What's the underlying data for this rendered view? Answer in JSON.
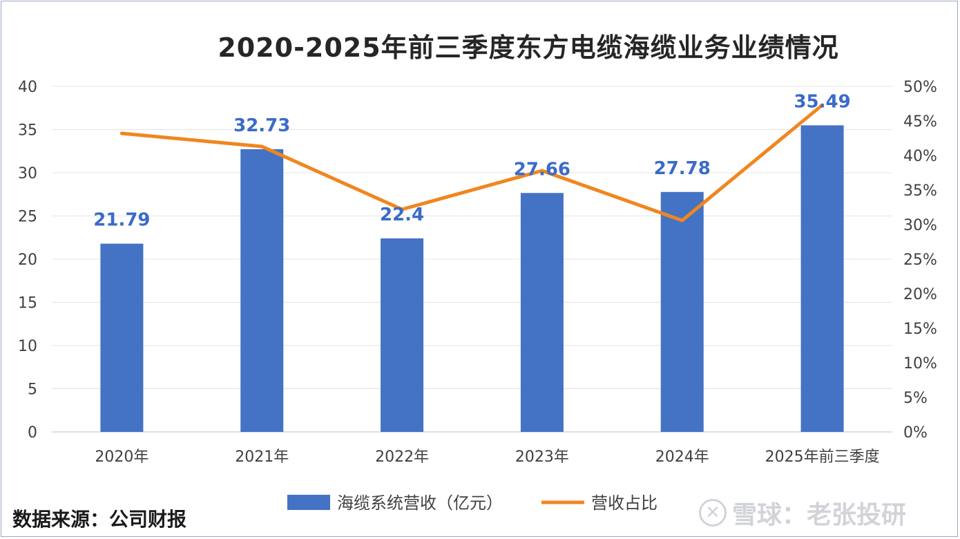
{
  "chart_data": {
    "type": "bar",
    "title": "2020-2025年前三季度东方电缆海缆业务业绩情况",
    "categories": [
      "2020年",
      "2021年",
      "2022年",
      "2023年",
      "2024年",
      "2025年前三季度"
    ],
    "series": [
      {
        "name": "海缆系统营收（亿元）",
        "type": "bar",
        "axis": "left",
        "color": "#4472c4",
        "values": [
          21.79,
          32.73,
          22.4,
          27.66,
          27.78,
          35.49
        ],
        "labels": [
          "21.79",
          "32.73",
          "22.4",
          "27.66",
          "27.78",
          "35.49"
        ]
      },
      {
        "name": "营收占比",
        "type": "line",
        "axis": "right",
        "color": "#f0861f",
        "values": [
          43.2,
          41.3,
          32.2,
          37.8,
          30.6,
          47.3
        ]
      }
    ],
    "ylim_left": [
      0,
      40
    ],
    "yticks_left": [
      "0",
      "5",
      "10",
      "15",
      "20",
      "25",
      "30",
      "35",
      "40"
    ],
    "ylim_right": [
      0,
      50
    ],
    "yticks_right": [
      "0%",
      "5%",
      "10%",
      "15%",
      "20%",
      "25%",
      "30%",
      "35%",
      "40%",
      "45%",
      "50%"
    ],
    "grid": true,
    "legend_position": "bottom"
  },
  "footer": {
    "source": "数据来源：公司财报",
    "watermark": "雪球：老张投研"
  }
}
